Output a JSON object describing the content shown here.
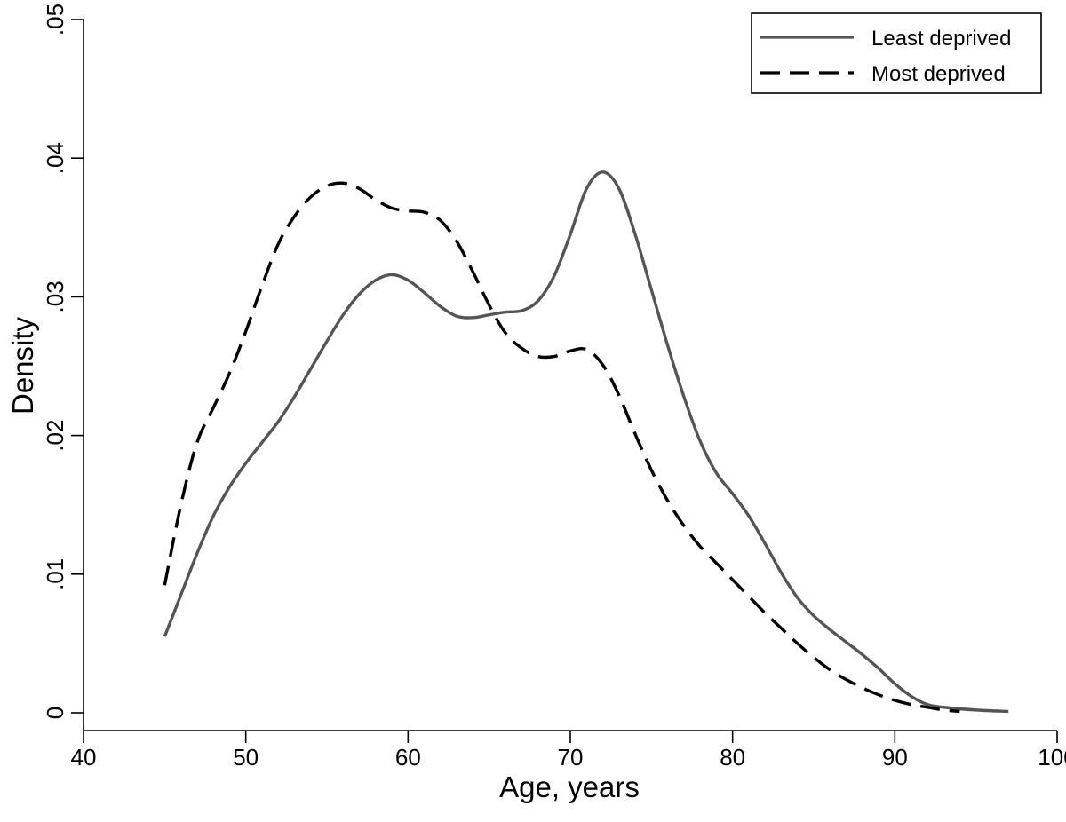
{
  "chart_data": {
    "type": "line",
    "title": "",
    "xlabel": "Age, years",
    "ylabel": "Density",
    "xlim": [
      40,
      100
    ],
    "ylim": [
      0,
      0.05
    ],
    "x_ticks": [
      40,
      50,
      60,
      70,
      80,
      90,
      100
    ],
    "x_tick_labels": [
      "40",
      "50",
      "60",
      "70",
      "80",
      "90",
      "100"
    ],
    "y_ticks": [
      0,
      0.01,
      0.02,
      0.03,
      0.04,
      0.05
    ],
    "y_tick_labels": [
      "0",
      ".01",
      ".02",
      ".03",
      ".04",
      ".05"
    ],
    "grid": false,
    "legend_position": "top-right",
    "series": [
      {
        "name": "Least deprived",
        "color": "#555555",
        "style": "solid",
        "points": [
          [
            45,
            0.0055
          ],
          [
            46,
            0.0085
          ],
          [
            47,
            0.0115
          ],
          [
            48,
            0.0142
          ],
          [
            49,
            0.0163
          ],
          [
            50,
            0.018
          ],
          [
            51,
            0.0195
          ],
          [
            52,
            0.021
          ],
          [
            53,
            0.0228
          ],
          [
            54,
            0.0248
          ],
          [
            55,
            0.0268
          ],
          [
            56,
            0.0287
          ],
          [
            57,
            0.0302
          ],
          [
            58,
            0.0312
          ],
          [
            59,
            0.0316
          ],
          [
            60,
            0.0312
          ],
          [
            61,
            0.0303
          ],
          [
            62,
            0.0293
          ],
          [
            63,
            0.0286
          ],
          [
            64,
            0.0285
          ],
          [
            65,
            0.0287
          ],
          [
            66,
            0.0289
          ],
          [
            67,
            0.029
          ],
          [
            68,
            0.0297
          ],
          [
            69,
            0.0315
          ],
          [
            70,
            0.0345
          ],
          [
            71,
            0.0378
          ],
          [
            72,
            0.039
          ],
          [
            73,
            0.0378
          ],
          [
            74,
            0.0345
          ],
          [
            75,
            0.0305
          ],
          [
            76,
            0.0265
          ],
          [
            77,
            0.0228
          ],
          [
            78,
            0.0196
          ],
          [
            79,
            0.0173
          ],
          [
            80,
            0.0158
          ],
          [
            81,
            0.0142
          ],
          [
            82,
            0.0122
          ],
          [
            83,
            0.0101
          ],
          [
            84,
            0.0083
          ],
          [
            85,
            0.007
          ],
          [
            86,
            0.006
          ],
          [
            87,
            0.0051
          ],
          [
            88,
            0.0042
          ],
          [
            89,
            0.0032
          ],
          [
            90,
            0.0021
          ],
          [
            91,
            0.0012
          ],
          [
            92,
            0.0006
          ],
          [
            93,
            0.0004
          ],
          [
            95,
            0.0002
          ],
          [
            97,
            0.0001
          ]
        ]
      },
      {
        "name": "Most deprived",
        "color": "#000000",
        "style": "dashed",
        "points": [
          [
            45,
            0.0092
          ],
          [
            46,
            0.015
          ],
          [
            47,
            0.0195
          ],
          [
            48,
            0.022
          ],
          [
            49,
            0.0245
          ],
          [
            50,
            0.0275
          ],
          [
            51,
            0.0308
          ],
          [
            52,
            0.0338
          ],
          [
            53,
            0.0358
          ],
          [
            54,
            0.0372
          ],
          [
            55,
            0.038
          ],
          [
            56,
            0.0382
          ],
          [
            57,
            0.0378
          ],
          [
            58,
            0.037
          ],
          [
            59,
            0.0364
          ],
          [
            60,
            0.0362
          ],
          [
            61,
            0.0361
          ],
          [
            62,
            0.0355
          ],
          [
            63,
            0.034
          ],
          [
            64,
            0.0318
          ],
          [
            65,
            0.0294
          ],
          [
            66,
            0.0274
          ],
          [
            67,
            0.0263
          ],
          [
            68,
            0.0257
          ],
          [
            69,
            0.0257
          ],
          [
            70,
            0.0261
          ],
          [
            71,
            0.0262
          ],
          [
            72,
            0.0251
          ],
          [
            73,
            0.0229
          ],
          [
            74,
            0.0201
          ],
          [
            75,
            0.0175
          ],
          [
            76,
            0.0153
          ],
          [
            77,
            0.0135
          ],
          [
            78,
            0.012
          ],
          [
            79,
            0.0108
          ],
          [
            80,
            0.0096
          ],
          [
            81,
            0.0084
          ],
          [
            82,
            0.0072
          ],
          [
            83,
            0.0061
          ],
          [
            84,
            0.005
          ],
          [
            85,
            0.004
          ],
          [
            86,
            0.0031
          ],
          [
            87,
            0.0024
          ],
          [
            88,
            0.0018
          ],
          [
            89,
            0.0013
          ],
          [
            90,
            0.0009
          ],
          [
            91,
            0.0006
          ],
          [
            92,
            0.0004
          ],
          [
            93,
            0.0002
          ],
          [
            94,
            0.0001
          ]
        ]
      }
    ]
  }
}
